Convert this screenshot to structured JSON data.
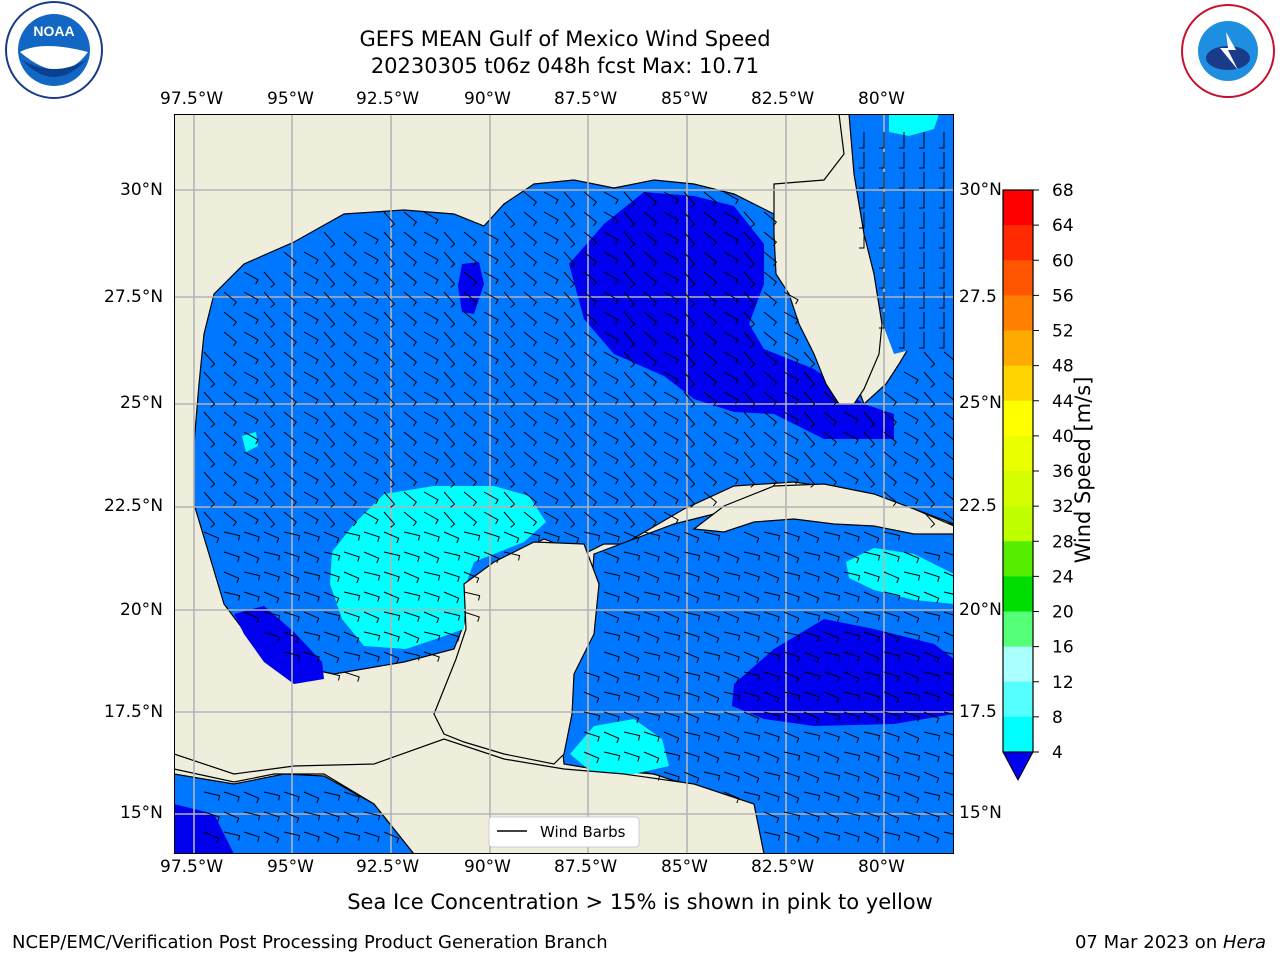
{
  "header": {
    "title_line1": "GEFS MEAN Gulf of Mexico Wind Speed",
    "title_line2": "20230305 t06z 048h fcst   Max: 10.71"
  },
  "logos": {
    "noaa_label": "NOAA",
    "noaa_ring_text": "NATIONAL OCEANIC AND ATMOSPHERIC ADMINISTRATION · U.S. DEPARTMENT OF COMMERCE",
    "nws_ring_text": "NATIONAL WEATHER SERVICE"
  },
  "map": {
    "lon_ticks": [
      "97.5°W",
      "95°W",
      "92.5°W",
      "90°W",
      "87.5°W",
      "85°W",
      "82.5°W",
      "80°W"
    ],
    "lat_ticks_left": [
      "30°N",
      "27.5°N",
      "25°N",
      "22.5°N",
      "20°N",
      "17.5°N",
      "15°N"
    ],
    "lat_ticks_right": [
      "30°N",
      "27.5",
      "25°N",
      "22.5",
      "20°N",
      "17.5",
      "15°N"
    ],
    "legend_label": "Wind Barbs",
    "colors": {
      "land": "#efeddc",
      "band_4_8": "#0077ff",
      "band_below_4": "#0000ee",
      "band_8_12": "#00ffff",
      "grid": "#b4b4b4"
    }
  },
  "colorbar": {
    "label": "Wind Speed [m/s]",
    "ticks": [
      "68",
      "64",
      "60",
      "56",
      "52",
      "48",
      "44",
      "40",
      "36",
      "32",
      "28",
      "24",
      "20",
      "16",
      "12",
      "8",
      "4"
    ],
    "colors": [
      "#ff0000",
      "#ff2a00",
      "#ff5500",
      "#ff8000",
      "#ffaa00",
      "#ffd400",
      "#ffff00",
      "#eaff00",
      "#d5ff00",
      "#bfff00",
      "#55ee00",
      "#00dd00",
      "#55ff77",
      "#aaffff",
      "#55ffff",
      "#00ffff",
      "#0077ff"
    ],
    "extend_color": "#0000ee"
  },
  "notes": {
    "sea_ice": "Sea Ice Concentration > 15% is shown in pink to yellow"
  },
  "footer": {
    "left": "NCEP/EMC/Verification Post Processing Product Generation Branch",
    "right_prefix": "07 Mar 2023 on ",
    "right_host": "Hera"
  }
}
